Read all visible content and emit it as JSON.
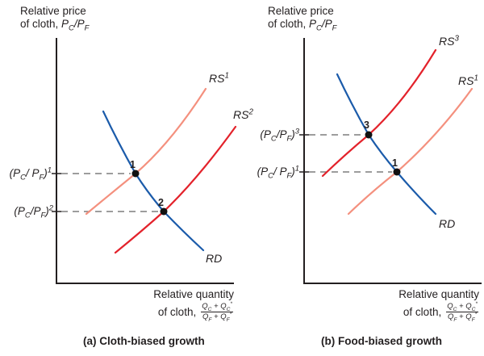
{
  "figure_type": "two-panel relative supply and demand diagram",
  "colors": {
    "axis": "#231f20",
    "dashed_guide": "#7d7d7d",
    "point": "#111111",
    "relative_supply_initial": "#f4907e",
    "relative_supply_shifted": "#e3222b",
    "relative_demand": "#1b5baa"
  },
  "panels": {
    "a": {
      "y_axis_title_line1": "Relative price",
      "y_axis_title_line2_prefix": "of cloth, ",
      "y_axis_title_line2_math": "P_{C}/P_{F}",
      "x_axis_title_line1": "Relative quantity",
      "x_axis_title_line2_prefix": "of cloth,",
      "x_axis_fraction_numerator": "Q_{C} + Q_{C}^{*}",
      "x_axis_fraction_denominator": "Q_{F} + Q_{F}^{*}",
      "curve_labels": {
        "rs1": "RS^{1}",
        "rs2": "RS^{2}",
        "rd": "RD"
      },
      "price_labels": {
        "p1": "(P_{C}/ P_{F})^{1}",
        "p2": "(P_{C}/P_{F})^{2}"
      },
      "point_labels": {
        "pt1": "1",
        "pt2": "2"
      },
      "caption": "(a) Cloth-biased growth"
    },
    "b": {
      "y_axis_title_line1": "Relative price",
      "y_axis_title_line2_prefix": "of cloth, ",
      "y_axis_title_line2_math": "P_{C}/P_{F}",
      "x_axis_title_line1": "Relative quantity",
      "x_axis_title_line2_prefix": "of cloth,",
      "x_axis_fraction_numerator": "Q_{C} + Q_{C}^{*}",
      "x_axis_fraction_denominator": "Q_{F} + Q_{F}^{*}",
      "curve_labels": {
        "rs3": "RS^{3}",
        "rs1": "RS^{1}",
        "rd": "RD"
      },
      "price_labels": {
        "p3": "(P_{C}/P_{F})^{3}",
        "p1": "(P_{C}/ P_{F})^{1}"
      },
      "point_labels": {
        "pt3": "3",
        "pt1": "1"
      },
      "caption": "(b) Food-biased growth"
    }
  }
}
